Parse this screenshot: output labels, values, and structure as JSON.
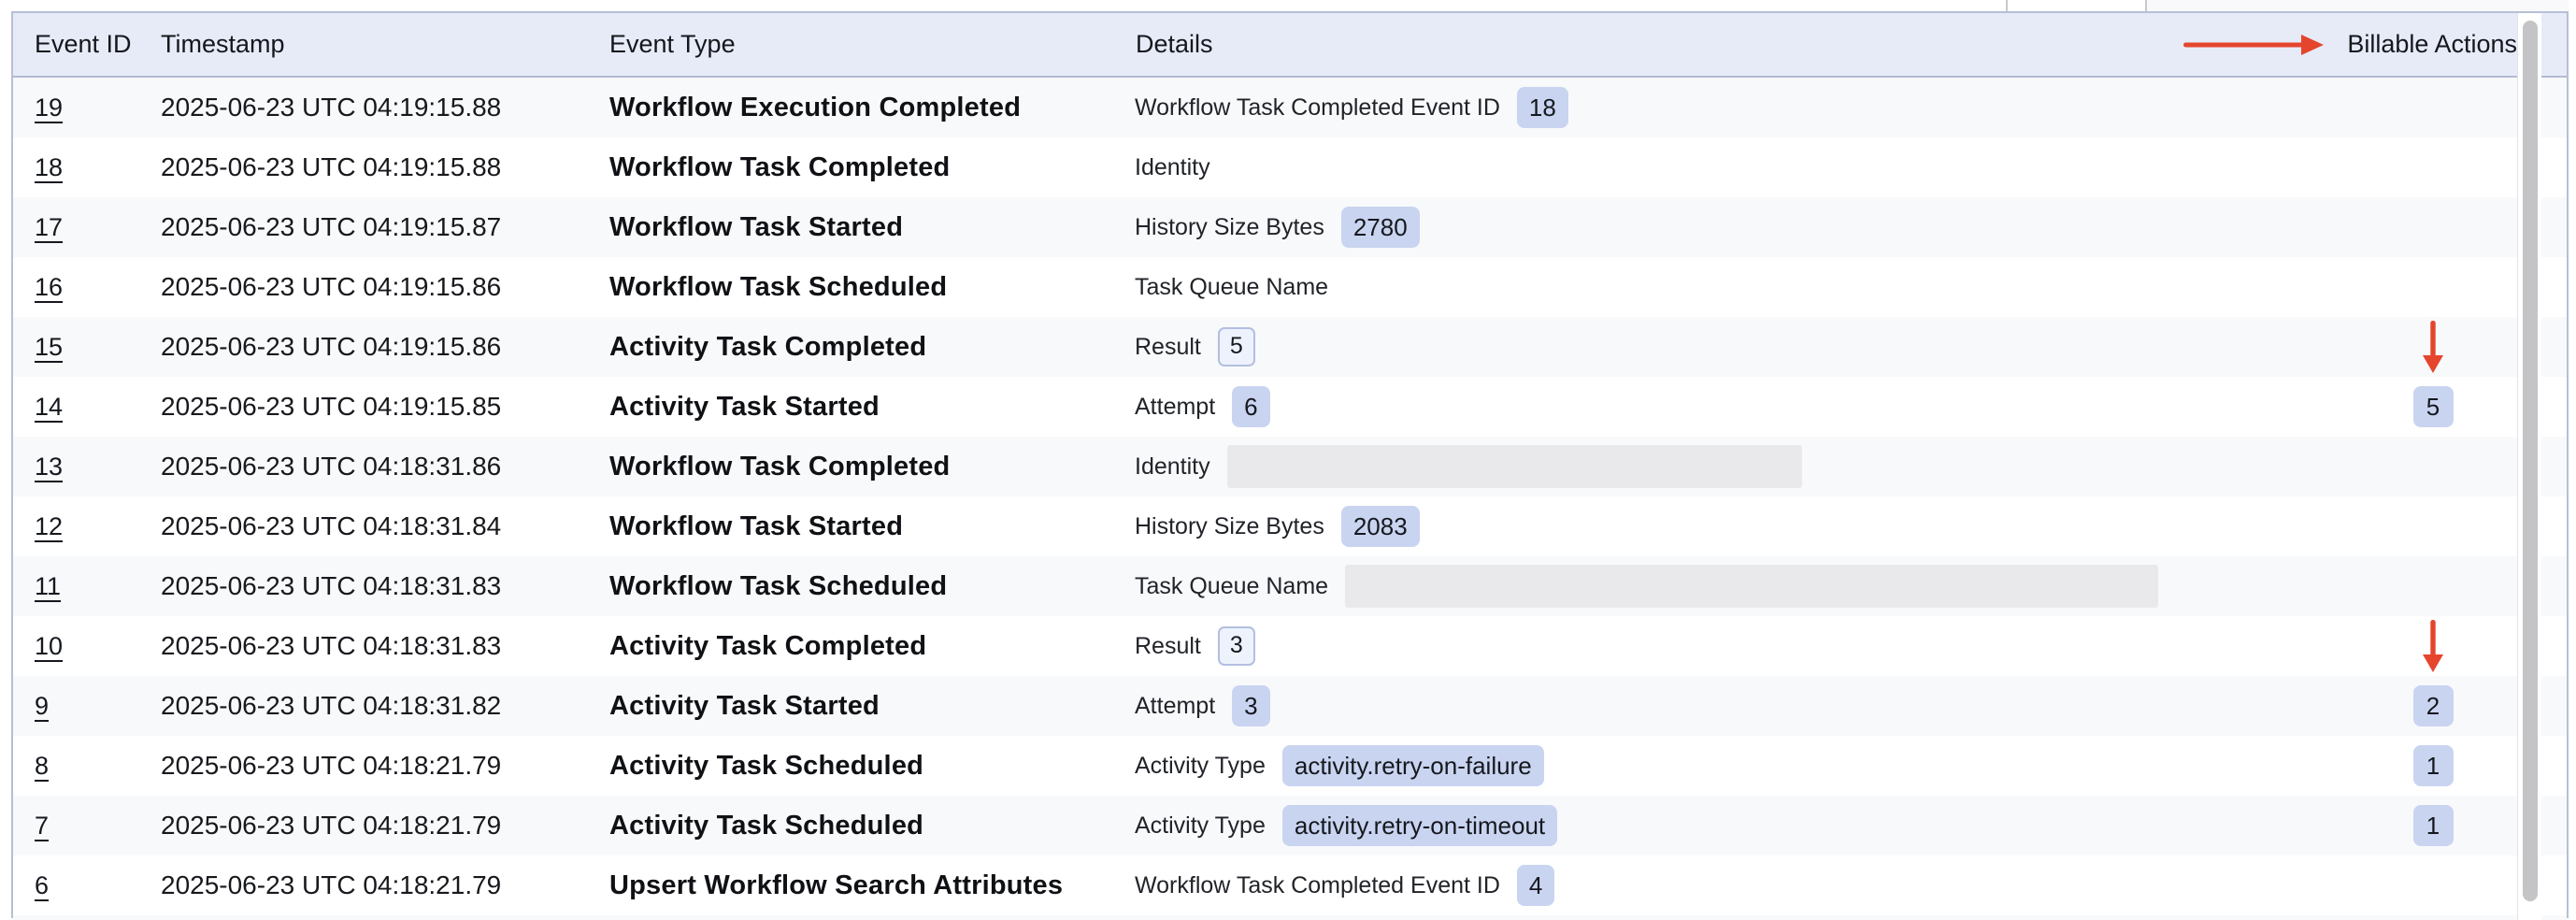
{
  "colors": {
    "header_bg": "#e7ebf8",
    "stripe_bg": "#f8f9fb",
    "badge_fill": "#c9d4f0",
    "badge_outline_border": "#b3bfe0",
    "redacted_fill": "#e9e9eb",
    "annotation_red": "#e5452d",
    "table_border": "#b7bfd6"
  },
  "header": {
    "columns": {
      "event_id": "Event ID",
      "timestamp": "Timestamp",
      "event_type": "Event Type",
      "details": "Details",
      "billable": "Billable Actions"
    },
    "billable_arrow": true
  },
  "rows": [
    {
      "id": "19",
      "timestamp": "2025-06-23 UTC 04:19:15.88",
      "type": "Workflow Execution Completed",
      "detail_label": "Workflow Task Completed Event ID",
      "detail_value": "18",
      "detail_style": "filled",
      "billable": "",
      "arrow": false
    },
    {
      "id": "18",
      "timestamp": "2025-06-23 UTC 04:19:15.88",
      "type": "Workflow Task Completed",
      "detail_label": "Identity",
      "detail_value": "",
      "detail_style": "none",
      "billable": "",
      "arrow": false
    },
    {
      "id": "17",
      "timestamp": "2025-06-23 UTC 04:19:15.87",
      "type": "Workflow Task Started",
      "detail_label": "History Size Bytes",
      "detail_value": "2780",
      "detail_style": "filled",
      "billable": "",
      "arrow": false
    },
    {
      "id": "16",
      "timestamp": "2025-06-23 UTC 04:19:15.86",
      "type": "Workflow Task Scheduled",
      "detail_label": "Task Queue Name",
      "detail_value": "",
      "detail_style": "none",
      "billable": "",
      "arrow": false
    },
    {
      "id": "15",
      "timestamp": "2025-06-23 UTC 04:19:15.86",
      "type": "Activity Task Completed",
      "detail_label": "Result",
      "detail_value": "5",
      "detail_style": "outlined",
      "billable": "",
      "arrow": true
    },
    {
      "id": "14",
      "timestamp": "2025-06-23 UTC 04:19:15.85",
      "type": "Activity Task Started",
      "detail_label": "Attempt",
      "detail_value": "6",
      "detail_style": "filled",
      "billable": "5",
      "arrow": false
    },
    {
      "id": "13",
      "timestamp": "2025-06-23 UTC 04:18:31.86",
      "type": "Workflow Task Completed",
      "detail_label": "Identity",
      "detail_value": "",
      "detail_style": "redacted",
      "redacted_width": 615,
      "billable": "",
      "arrow": false
    },
    {
      "id": "12",
      "timestamp": "2025-06-23 UTC 04:18:31.84",
      "type": "Workflow Task Started",
      "detail_label": "History Size Bytes",
      "detail_value": "2083",
      "detail_style": "filled",
      "billable": "",
      "arrow": false
    },
    {
      "id": "11",
      "timestamp": "2025-06-23 UTC 04:18:31.83",
      "type": "Workflow Task Scheduled",
      "detail_label": "Task Queue Name",
      "detail_value": "",
      "detail_style": "redacted",
      "redacted_width": 870,
      "billable": "",
      "arrow": false
    },
    {
      "id": "10",
      "timestamp": "2025-06-23 UTC 04:18:31.83",
      "type": "Activity Task Completed",
      "detail_label": "Result",
      "detail_value": "3",
      "detail_style": "outlined",
      "billable": "",
      "arrow": true
    },
    {
      "id": "9",
      "timestamp": "2025-06-23 UTC 04:18:31.82",
      "type": "Activity Task Started",
      "detail_label": "Attempt",
      "detail_value": "3",
      "detail_style": "filled",
      "billable": "2",
      "arrow": false
    },
    {
      "id": "8",
      "timestamp": "2025-06-23 UTC 04:18:21.79",
      "type": "Activity Task Scheduled",
      "detail_label": "Activity Type",
      "detail_value": "activity.retry-on-failure",
      "detail_style": "filled",
      "billable": "1",
      "arrow": false
    },
    {
      "id": "7",
      "timestamp": "2025-06-23 UTC 04:18:21.79",
      "type": "Activity Task Scheduled",
      "detail_label": "Activity Type",
      "detail_value": "activity.retry-on-timeout",
      "detail_style": "filled",
      "billable": "1",
      "arrow": false
    },
    {
      "id": "6",
      "timestamp": "2025-06-23 UTC 04:18:21.79",
      "type": "Upsert Workflow Search Attributes",
      "detail_label": "Workflow Task Completed Event ID",
      "detail_value": "4",
      "detail_style": "filled",
      "billable": "",
      "arrow": false
    }
  ]
}
